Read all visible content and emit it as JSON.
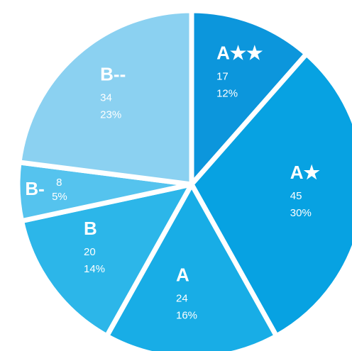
{
  "chart_data": {
    "type": "pie",
    "categories": [
      "A★★",
      "A★",
      "A",
      "B",
      "B-",
      "B--"
    ],
    "values": [
      17,
      45,
      24,
      20,
      8,
      34
    ],
    "percent_labels": [
      "12%",
      "30%",
      "16%",
      "14%",
      "5%",
      "23%"
    ],
    "colors": [
      "#0c96dc",
      "#07a2e2",
      "#18ade6",
      "#2cb6e9",
      "#55c3ee",
      "#8bd1f1"
    ]
  }
}
